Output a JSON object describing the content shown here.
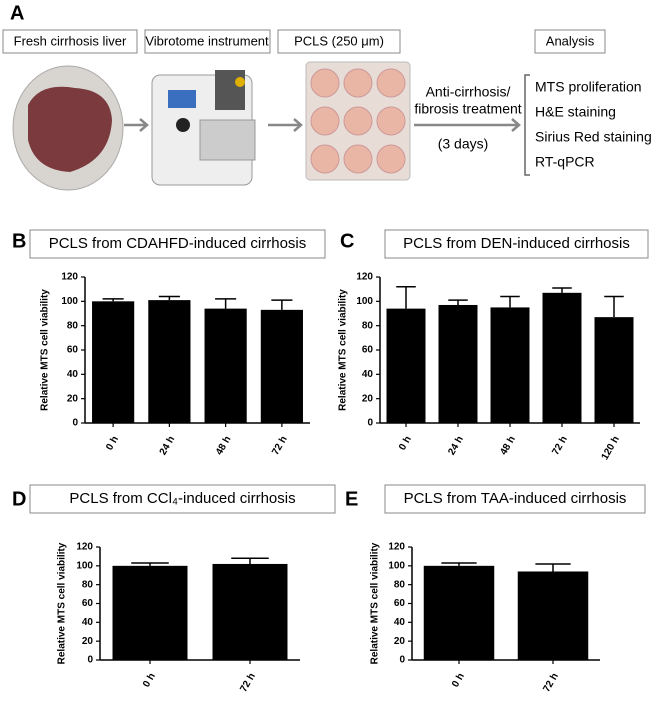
{
  "panel_a": {
    "label": "A",
    "steps": [
      "Fresh cirrhosis liver",
      "Vibrotome instrument",
      "PCLS (250 μm)",
      "Analysis"
    ],
    "treatment": [
      "Anti-cirrhosis/",
      "fibrosis treatment",
      "(3 days)"
    ],
    "analysis_items": [
      "MTS proliferation",
      "H&E staining",
      "Sirius Red staining",
      "RT-qPCR"
    ]
  },
  "chart_data": [
    {
      "type": "bar",
      "label": "B",
      "title": "PCLS from CDAHFD-induced cirrhosis",
      "y_label": "Relative MTS cell viability",
      "categories": [
        "0 h",
        "24 h",
        "48 h",
        "72 h"
      ],
      "values": [
        100,
        101,
        94,
        93
      ],
      "errors": [
        2,
        3,
        8,
        8
      ],
      "color": "#000000",
      "ylim": [
        0,
        120
      ],
      "yticks": [
        0,
        20,
        40,
        60,
        80,
        100,
        120
      ]
    },
    {
      "type": "bar",
      "label": "C",
      "title": "PCLS from DEN-induced cirrhosis",
      "y_label": "Relative MTS cell viability",
      "categories": [
        "0 h",
        "24 h",
        "48 h",
        "72 h",
        "120 h"
      ],
      "values": [
        94,
        97,
        95,
        107,
        87
      ],
      "errors": [
        18,
        4,
        9,
        4,
        17
      ],
      "color": "#000000",
      "ylim": [
        0,
        120
      ],
      "yticks": [
        0,
        20,
        40,
        60,
        80,
        100,
        120
      ]
    },
    {
      "type": "bar",
      "label": "D",
      "title": "PCLS from CCl₄-induced cirrhosis",
      "y_label": "Relative MTS cell viability",
      "categories": [
        "0 h",
        "72 h"
      ],
      "values": [
        100,
        102
      ],
      "errors": [
        3,
        6
      ],
      "color": "#000000",
      "ylim": [
        0,
        120
      ],
      "yticks": [
        0,
        20,
        40,
        60,
        80,
        100,
        120
      ]
    },
    {
      "type": "bar",
      "label": "E",
      "title": "PCLS from TAA-induced cirrhosis",
      "y_label": "Relative MTS cell viability",
      "categories": [
        "0 h",
        "72 h"
      ],
      "values": [
        100,
        94
      ],
      "errors": [
        3,
        8
      ],
      "color": "#000000",
      "ylim": [
        0,
        120
      ],
      "yticks": [
        0,
        20,
        40,
        60,
        80,
        100,
        120
      ]
    }
  ]
}
